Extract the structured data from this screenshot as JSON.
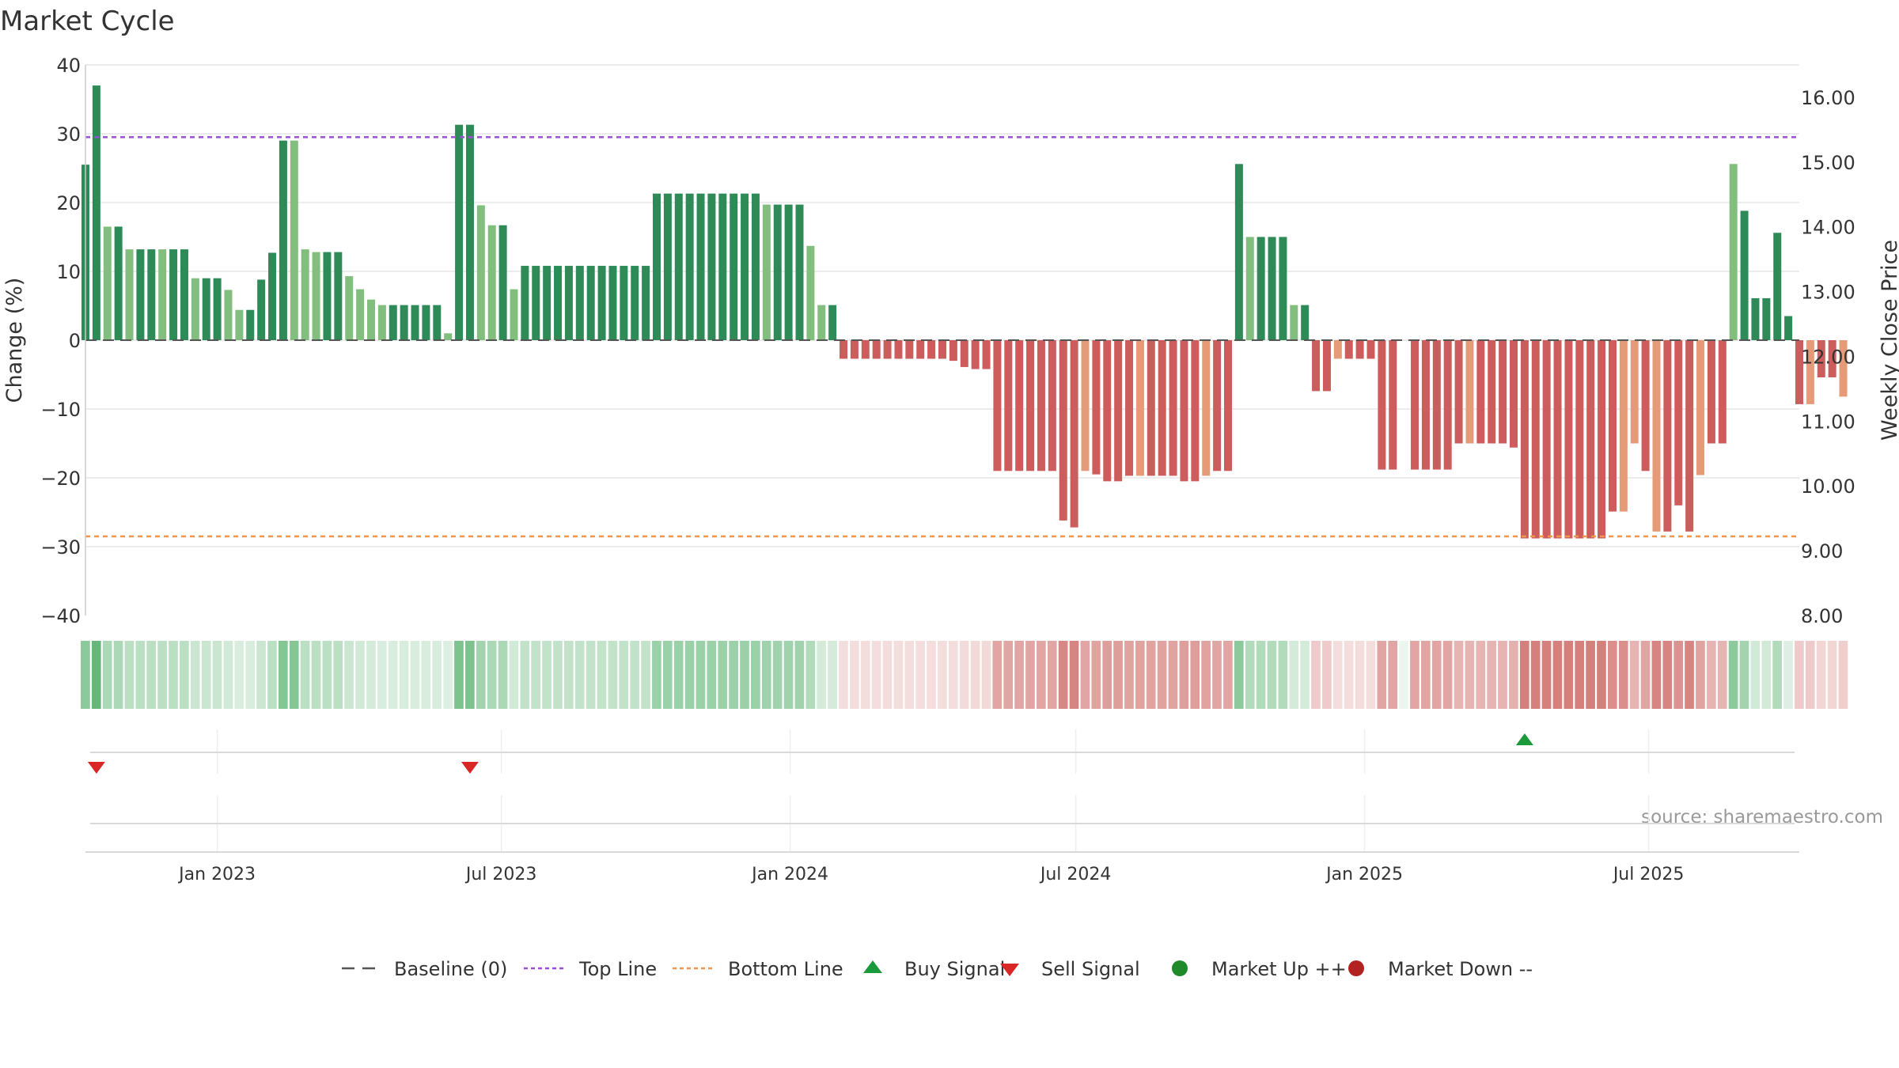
{
  "chart_data": {
    "type": "bar",
    "title": "Market Cycle",
    "ylabel": "Change (%)",
    "y2label": "Weekly Close Price",
    "ylim": [
      -40,
      40
    ],
    "y2lim": [
      8.0,
      16.5
    ],
    "yticks": [
      40,
      30,
      20,
      10,
      0,
      -10,
      -20,
      -30,
      -40
    ],
    "ytick_labels": [
      "40",
      "30",
      "20",
      "10",
      "0",
      "−10",
      "−20",
      "−30",
      "−40"
    ],
    "y2ticks": [
      16,
      15,
      14,
      13,
      12,
      11,
      10,
      9,
      8
    ],
    "y2tick_labels": [
      "16.00",
      "15.00",
      "14.00",
      "13.00",
      "12.00",
      "11.00",
      "10.00",
      "9.00",
      "8.00"
    ],
    "x_start": "2022-10-09",
    "x_end": "2025-10-05",
    "x_week_start": "2022-10-09",
    "xticks": [
      {
        "date": "2023-01-01",
        "label": "Jan 2023"
      },
      {
        "date": "2023-07-01",
        "label": "Jul 2023"
      },
      {
        "date": "2024-01-01",
        "label": "Jan 2024"
      },
      {
        "date": "2024-07-01",
        "label": "Jul 2024"
      },
      {
        "date": "2025-01-01",
        "label": "Jan 2025"
      },
      {
        "date": "2025-07-01",
        "label": "Jul 2025"
      }
    ],
    "top_line": 29.5,
    "bottom_line": -28.5,
    "grid": true,
    "legend_position": "bottom",
    "legend": [
      {
        "label": "Baseline (0)",
        "symbol": "dash",
        "color": "#555555"
      },
      {
        "label": "Top Line",
        "symbol": "dotted",
        "color": "#9b4fd8"
      },
      {
        "label": "Bottom Line",
        "symbol": "dotted",
        "color": "#f0954a"
      },
      {
        "label": "Buy Signal",
        "symbol": "triangle-up",
        "color": "#1a9a3a"
      },
      {
        "label": "Sell Signal",
        "symbol": "triangle-down",
        "color": "#d92626"
      },
      {
        "label": "Market Up ++",
        "symbol": "circle",
        "color": "#1e8a2a"
      },
      {
        "label": "Market Down --",
        "symbol": "circle",
        "color": "#b22222"
      }
    ],
    "buy_signals": [
      "2025-04-13"
    ],
    "sell_signals": [
      "2022-10-16",
      "2023-06-11"
    ],
    "colors": {
      "up_strong": "#2e8b57",
      "up_light": "#82bf7e",
      "down_strong": "#cd5c5c",
      "down_light": "#e59a78",
      "top_line": "#9b4fd8",
      "bottom_line": "#f0954a",
      "strip_up": "#66b87a",
      "strip_down": "#cd6a66"
    },
    "series": [
      {
        "name": "Change (%)",
        "values": [
          25.5,
          37.0,
          16.5,
          16.5,
          13.2,
          13.2,
          13.2,
          13.2,
          13.2,
          13.2,
          9.0,
          9.0,
          9.0,
          7.3,
          4.4,
          4.4,
          8.8,
          12.7,
          29.0,
          29.0,
          13.2,
          12.8,
          12.8,
          12.8,
          9.3,
          7.4,
          5.9,
          5.1,
          5.1,
          5.1,
          5.1,
          5.1,
          5.1,
          1.0,
          31.3,
          31.3,
          19.6,
          16.7,
          16.7,
          7.4,
          10.8,
          10.8,
          10.8,
          10.8,
          10.8,
          10.8,
          10.8,
          10.8,
          10.8,
          10.8,
          10.8,
          10.8,
          21.3,
          21.3,
          21.3,
          21.3,
          21.3,
          21.3,
          21.3,
          21.3,
          21.3,
          21.3,
          19.7,
          19.7,
          19.7,
          19.7,
          13.7,
          5.1,
          5.1,
          -2.7,
          -2.7,
          -2.7,
          -2.7,
          -2.7,
          -2.7,
          -2.7,
          -2.7,
          -2.7,
          -2.7,
          -3.0,
          -3.9,
          -4.2,
          -4.2,
          -19.0,
          -19.0,
          -19.0,
          -19.0,
          -19.0,
          -19.0,
          -26.2,
          -27.2,
          -19.0,
          -19.5,
          -20.5,
          -20.5,
          -19.7,
          -19.7,
          -19.7,
          -19.7,
          -19.7,
          -20.5,
          -20.5,
          -19.7,
          -19.0,
          -19.0,
          25.6,
          15.0,
          15.0,
          15.0,
          15.0,
          5.1,
          5.1,
          -7.4,
          -7.4,
          -2.7,
          -2.7,
          -2.7,
          -2.7,
          -18.8,
          -18.8,
          0,
          -18.8,
          -18.8,
          -18.8,
          -18.8,
          -15.0,
          -15.0,
          -15.0,
          -15.0,
          -15.0,
          -15.6,
          -28.8,
          -28.8,
          -28.8,
          -28.8,
          -28.8,
          -28.8,
          -28.8,
          -28.8,
          -24.9,
          -24.9,
          -15.0,
          -19.0,
          -27.8,
          -27.8,
          -24.0,
          -27.8,
          -19.6,
          -15.0,
          -15.0,
          25.6,
          18.8,
          6.1,
          6.1,
          15.6,
          3.5,
          -9.3,
          -9.3,
          -5.4,
          -5.4,
          -8.2
        ],
        "shade": [
          1,
          1,
          0,
          1,
          0,
          1,
          1,
          0,
          1,
          1,
          0,
          1,
          1,
          0,
          0,
          1,
          1,
          1,
          1,
          0,
          0,
          0,
          1,
          1,
          0,
          0,
          0,
          0,
          1,
          1,
          1,
          1,
          1,
          0,
          1,
          1,
          0,
          0,
          1,
          0,
          1,
          1,
          1,
          1,
          1,
          1,
          1,
          1,
          1,
          1,
          1,
          1,
          1,
          1,
          1,
          1,
          1,
          1,
          1,
          1,
          1,
          1,
          0,
          1,
          1,
          1,
          0,
          0,
          1,
          1,
          1,
          1,
          1,
          1,
          1,
          1,
          1,
          1,
          1,
          1,
          1,
          1,
          1,
          1,
          1,
          1,
          1,
          1,
          1,
          1,
          1,
          0,
          1,
          1,
          1,
          1,
          0,
          1,
          1,
          1,
          1,
          1,
          0,
          1,
          1,
          1,
          0,
          1,
          1,
          1,
          0,
          1,
          1,
          1,
          0,
          1,
          1,
          1,
          1,
          1,
          1,
          1,
          1,
          1,
          1,
          1,
          0,
          1,
          1,
          1,
          1,
          1,
          1,
          1,
          1,
          1,
          1,
          1,
          1,
          1,
          0,
          0,
          1,
          0,
          1,
          1,
          1,
          0,
          1,
          1,
          0,
          1,
          1,
          1,
          1,
          1,
          1,
          0,
          1,
          1,
          0,
          1,
          1,
          0,
          1,
          1
        ]
      }
    ],
    "strip": [
      0.75,
      1.0,
      0.55,
      0.55,
      0.45,
      0.45,
      0.45,
      0.45,
      0.45,
      0.45,
      0.35,
      0.35,
      0.35,
      0.3,
      0.25,
      0.25,
      0.35,
      0.45,
      0.8,
      0.8,
      0.45,
      0.45,
      0.45,
      0.45,
      0.35,
      0.3,
      0.28,
      0.25,
      0.25,
      0.25,
      0.25,
      0.25,
      0.25,
      0.2,
      0.85,
      0.85,
      0.6,
      0.55,
      0.55,
      0.3,
      0.4,
      0.4,
      0.4,
      0.4,
      0.4,
      0.4,
      0.4,
      0.4,
      0.4,
      0.4,
      0.4,
      0.4,
      0.65,
      0.65,
      0.65,
      0.65,
      0.65,
      0.65,
      0.65,
      0.65,
      0.65,
      0.65,
      0.62,
      0.62,
      0.62,
      0.62,
      0.5,
      0.28,
      0.28,
      -0.2,
      -0.2,
      -0.2,
      -0.2,
      -0.2,
      -0.2,
      -0.2,
      -0.2,
      -0.2,
      -0.2,
      -0.22,
      -0.24,
      -0.25,
      -0.25,
      -0.6,
      -0.6,
      -0.6,
      -0.6,
      -0.6,
      -0.6,
      -0.8,
      -0.82,
      -0.6,
      -0.62,
      -0.65,
      -0.65,
      -0.62,
      -0.62,
      -0.62,
      -0.62,
      -0.62,
      -0.65,
      -0.65,
      -0.62,
      -0.6,
      -0.6,
      0.75,
      0.5,
      0.5,
      0.5,
      0.5,
      0.28,
      0.28,
      -0.35,
      -0.35,
      -0.2,
      -0.2,
      -0.2,
      -0.2,
      -0.6,
      -0.6,
      0,
      -0.6,
      -0.6,
      -0.6,
      -0.6,
      -0.5,
      -0.5,
      -0.5,
      -0.5,
      -0.5,
      -0.52,
      -0.85,
      -0.85,
      -0.85,
      -0.85,
      -0.85,
      -0.85,
      -0.85,
      -0.85,
      -0.75,
      -0.75,
      -0.5,
      -0.6,
      -0.82,
      -0.82,
      -0.72,
      -0.82,
      -0.62,
      -0.5,
      -0.5,
      0.75,
      0.6,
      0.3,
      0.3,
      0.5,
      0.22,
      -0.35,
      -0.35,
      -0.28,
      -0.28,
      -0.32
    ]
  },
  "source_label": "source: sharemaestro.com"
}
